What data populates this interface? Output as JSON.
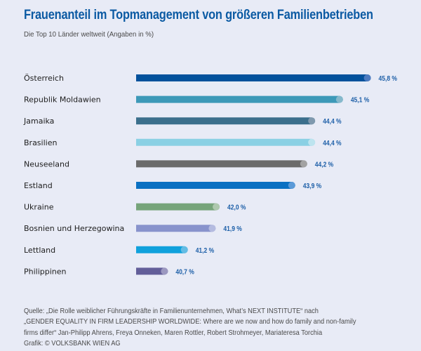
{
  "header": {
    "title": "Frauenanteil im Topmanagement von größeren Familienbetrieben",
    "subtitle": "Die Top 10 Länder weltweit (Angaben in %)"
  },
  "chart_data": {
    "type": "bar",
    "orientation": "horizontal",
    "title": "Frauenanteil im Topmanagement von größeren Familienbetrieben",
    "subtitle": "Die Top 10 Länder weltweit (Angaben in %)",
    "xlabel": "",
    "ylabel": "",
    "unit": "%",
    "grid": false,
    "legend": "none",
    "xlim": [
      39.9,
      45.8
    ],
    "categories": [
      "Österreich",
      "Republik Moldawien",
      "Jamaika",
      "Brasilien",
      "Neuseeland",
      "Estland",
      "Ukraine",
      "Bosnien und Herzegowina",
      "Lettland",
      "Philippinen"
    ],
    "values": [
      45.8,
      45.1,
      44.4,
      44.4,
      44.2,
      43.9,
      42.0,
      41.9,
      41.2,
      40.7
    ],
    "value_labels": [
      "45,8 %",
      "45,1 %",
      "44,4 %",
      "44,4 %",
      "44,2 %",
      "43,9 %",
      "42,0 %",
      "41,9 %",
      "41,2 %",
      "40,7 %"
    ],
    "colors": [
      "#02519c",
      "#3d99b8",
      "#3b6f8c",
      "#8ad0e4",
      "#6b6b6b",
      "#0a70c2",
      "#76a47a",
      "#8893cc",
      "#10a1dc",
      "#625e99"
    ],
    "cap_colors": [
      "#4d7bc0",
      "#86b9cc",
      "#7f99ae",
      "#bde4ef",
      "#a2a2a2",
      "#5b9ad8",
      "#aec8ae",
      "#b4bbe0",
      "#63bce4",
      "#9b98c0"
    ],
    "label_color": "#1d5fa8"
  },
  "footer": {
    "lines": [
      "Quelle: „Die Rolle weiblicher Führungskräfte in Familienunternehmen, What’s NEXT INSTITUTE“ nach",
      "„GENDER EQUALITY IN FIRM LEADERSHIP WORLDWIDE: Where are we now and how do family and non-family",
      "firms differ“ Jan-Philipp Ahrens, Freya Onneken, Maren Rottler, Robert Strohmeyer, Mariateresa Torchia",
      "Grafik: © VOLKSBANK WIEN AG"
    ]
  }
}
